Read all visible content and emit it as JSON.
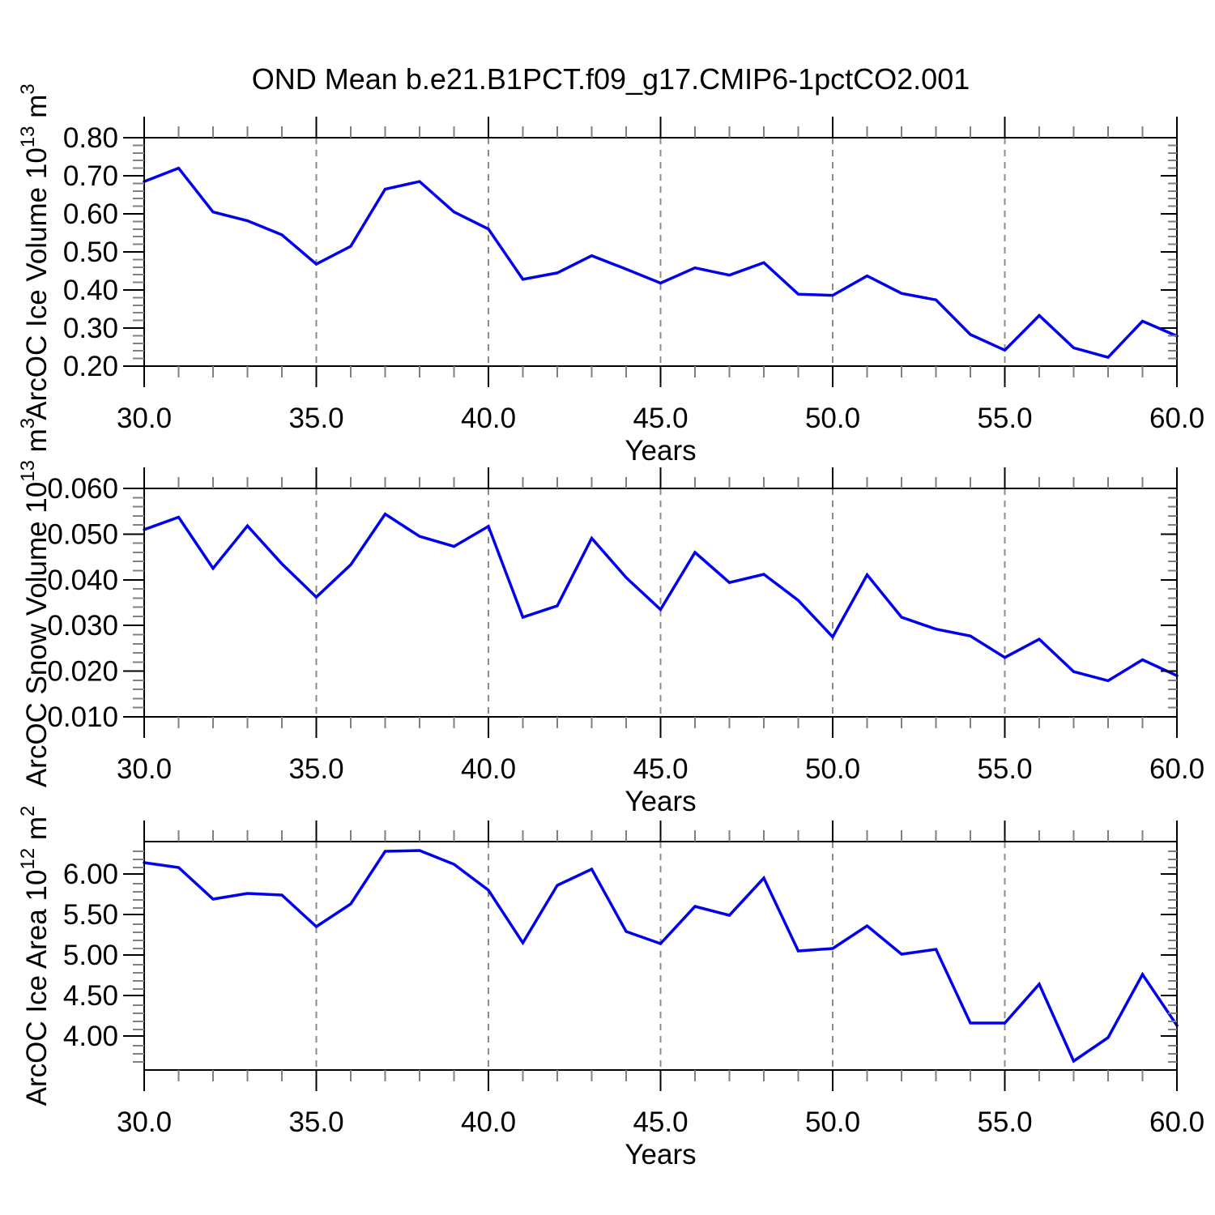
{
  "title": "OND Mean b.e21.B1PCT.f09_g17.CMIP6-1pctCO2.001",
  "colors": {
    "line": "#0000ee",
    "frame": "#000000",
    "major_tick": "#000000",
    "minor_tick": "#808080",
    "grid": "#8c8c8c",
    "text": "#000000",
    "background": "#ffffff"
  },
  "x_axis": {
    "label": "Years",
    "min": 30,
    "max": 60,
    "major_step": 5,
    "minor_step": 1,
    "tick_values": [
      30,
      35,
      40,
      45,
      50,
      55,
      60
    ],
    "tick_labels": [
      "30.0",
      "35.0",
      "40.0",
      "45.0",
      "50.0",
      "55.0",
      "60.0"
    ],
    "grid_years": [
      35,
      40,
      45,
      50,
      55
    ]
  },
  "chart_data": [
    {
      "type": "line",
      "name": "ice-volume",
      "ylabel": "ArcOC Ice Volume 10^13 m^3",
      "ylabel_parts": [
        {
          "t": "ArcOC Ice Volume 10",
          "sup": false
        },
        {
          "t": "13",
          "sup": true
        },
        {
          "t": " m",
          "sup": false
        },
        {
          "t": "3",
          "sup": true
        }
      ],
      "ylim": [
        0.2,
        0.8
      ],
      "ytick_values": [
        0.2,
        0.3,
        0.4,
        0.5,
        0.6,
        0.7,
        0.8
      ],
      "ytick_labels": [
        "0.20",
        "0.30",
        "0.40",
        "0.50",
        "0.60",
        "0.70",
        "0.80"
      ],
      "yminor_step": 0.02,
      "x_start": 30,
      "values": [
        0.685,
        0.72,
        0.605,
        0.582,
        0.545,
        0.468,
        0.515,
        0.665,
        0.685,
        0.605,
        0.56,
        0.428,
        0.445,
        0.49,
        0.455,
        0.418,
        0.458,
        0.439,
        0.472,
        0.389,
        0.386,
        0.437,
        0.391,
        0.374,
        0.283,
        0.242,
        0.333,
        0.248,
        0.223,
        0.318,
        0.279
      ]
    },
    {
      "type": "line",
      "name": "snow-volume",
      "ylabel": "ArcOC Snow Volume 10^13 m^3",
      "ylabel_parts": [
        {
          "t": "ArcOC Snow Volume 10",
          "sup": false
        },
        {
          "t": "13",
          "sup": true
        },
        {
          "t": " m",
          "sup": false
        },
        {
          "t": "3",
          "sup": true
        }
      ],
      "ylim": [
        0.01,
        0.06
      ],
      "ytick_values": [
        0.01,
        0.02,
        0.03,
        0.04,
        0.05,
        0.06
      ],
      "ytick_labels": [
        "0.010",
        "0.020",
        "0.030",
        "0.040",
        "0.050",
        "0.060"
      ],
      "yminor_step": 0.002,
      "x_start": 30,
      "values": [
        0.051,
        0.0537,
        0.0425,
        0.0518,
        0.0435,
        0.0362,
        0.0433,
        0.0544,
        0.0495,
        0.0473,
        0.0517,
        0.0318,
        0.0343,
        0.0491,
        0.0405,
        0.0335,
        0.046,
        0.0394,
        0.0412,
        0.0355,
        0.0275,
        0.0411,
        0.0318,
        0.0292,
        0.0277,
        0.023,
        0.027,
        0.0199,
        0.0179,
        0.0225,
        0.019
      ]
    },
    {
      "type": "line",
      "name": "ice-area",
      "ylabel": "ArcOC Ice Area 10^12 m^2",
      "ylabel_parts": [
        {
          "t": "ArcOC Ice Area 10",
          "sup": false
        },
        {
          "t": "12",
          "sup": true
        },
        {
          "t": " m",
          "sup": false
        },
        {
          "t": "2",
          "sup": true
        }
      ],
      "ylim": [
        3.58,
        6.4
      ],
      "ytick_values": [
        4.0,
        4.5,
        5.0,
        5.5,
        6.0
      ],
      "ytick_labels": [
        "4.00",
        "4.50",
        "5.00",
        "5.50",
        "6.00"
      ],
      "yminor_step": 0.1,
      "x_start": 30,
      "values": [
        6.14,
        6.08,
        5.69,
        5.76,
        5.74,
        5.35,
        5.63,
        6.28,
        6.29,
        6.12,
        5.8,
        5.15,
        5.86,
        6.06,
        5.29,
        5.14,
        5.6,
        5.49,
        5.95,
        5.05,
        5.08,
        5.36,
        5.01,
        5.07,
        4.16,
        4.16,
        4.64,
        3.69,
        3.98,
        4.76,
        4.13
      ]
    }
  ]
}
